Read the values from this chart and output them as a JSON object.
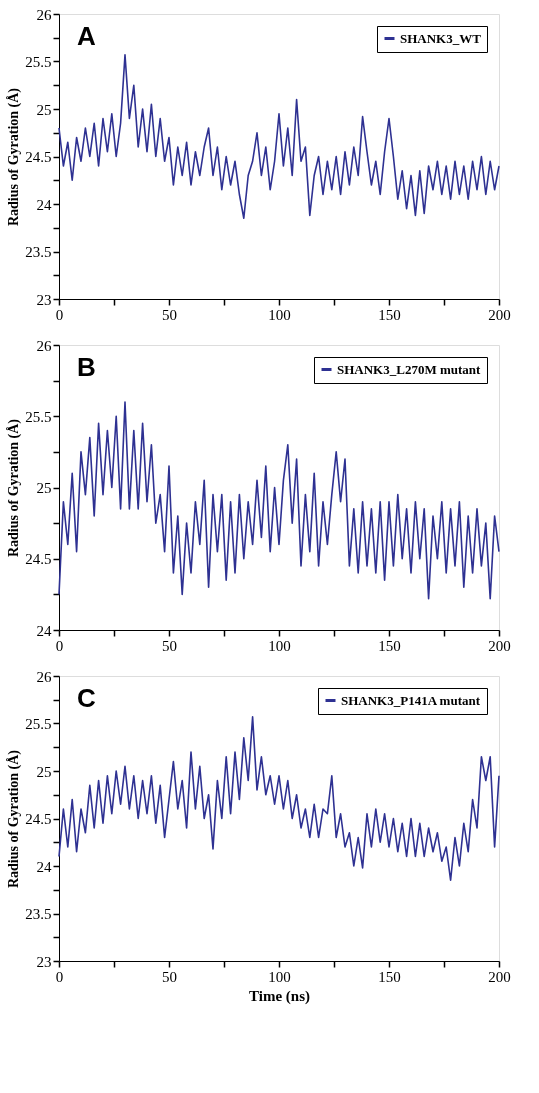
{
  "chart_data": [
    {
      "type": "line",
      "ylabel": "Radius of Gyration (Å)",
      "annotations": [
        "A"
      ],
      "legend": "top right",
      "grid": false,
      "xlim": [
        0,
        200
      ],
      "ylim": [
        23,
        26
      ],
      "xticks": [
        0,
        {
          "value": 25,
          "label": null
        },
        50,
        {
          "value": 75,
          "label": null
        },
        100,
        {
          "value": 125,
          "label": null
        },
        150,
        {
          "value": 175,
          "label": null
        },
        200
      ],
      "yticks": [
        23,
        {
          "value": 23.25,
          "label": null
        },
        23.5,
        {
          "value": 23.75,
          "label": null
        },
        24,
        {
          "value": 24.25,
          "label": null
        },
        24.5,
        {
          "value": 24.75,
          "label": null
        },
        25,
        {
          "value": 25.25,
          "label": null
        },
        25.5,
        {
          "value": 25.75,
          "label": null
        },
        26
      ],
      "x": [
        0,
        2,
        4,
        6,
        8,
        10,
        12,
        14,
        16,
        18,
        20,
        22,
        24,
        26,
        28,
        30,
        32,
        34,
        36,
        38,
        40,
        42,
        44,
        46,
        48,
        50,
        52,
        54,
        56,
        58,
        60,
        62,
        64,
        66,
        68,
        70,
        72,
        74,
        76,
        78,
        80,
        82,
        84,
        86,
        88,
        90,
        92,
        94,
        96,
        98,
        100,
        102,
        104,
        106,
        108,
        110,
        112,
        114,
        116,
        118,
        120,
        122,
        124,
        126,
        128,
        130,
        132,
        134,
        136,
        138,
        140,
        142,
        144,
        146,
        148,
        150,
        152,
        154,
        156,
        158,
        160,
        162,
        164,
        166,
        168,
        170,
        172,
        174,
        176,
        178,
        180,
        182,
        184,
        186,
        188,
        190,
        192,
        194,
        196,
        198,
        200
      ],
      "series": [
        {
          "name": "SHANK3_WT",
          "color": "#2e3192",
          "values": [
            24.8,
            24.4,
            24.65,
            24.25,
            24.7,
            24.45,
            24.8,
            24.5,
            24.85,
            24.4,
            24.9,
            24.55,
            24.95,
            24.5,
            24.85,
            25.57,
            24.9,
            25.25,
            24.6,
            25.0,
            24.55,
            25.05,
            24.5,
            24.9,
            24.45,
            24.7,
            24.2,
            24.6,
            24.3,
            24.65,
            24.2,
            24.55,
            24.3,
            24.6,
            24.8,
            24.3,
            24.6,
            24.15,
            24.5,
            24.2,
            24.45,
            24.1,
            23.85,
            24.3,
            24.45,
            24.75,
            24.3,
            24.6,
            24.15,
            24.45,
            24.95,
            24.4,
            24.8,
            24.3,
            25.1,
            24.45,
            24.6,
            23.88,
            24.3,
            24.5,
            24.1,
            24.45,
            24.15,
            24.5,
            24.1,
            24.55,
            24.2,
            24.6,
            24.3,
            24.92,
            24.55,
            24.2,
            24.45,
            24.1,
            24.55,
            24.9,
            24.5,
            24.05,
            24.35,
            23.95,
            24.3,
            23.88,
            24.35,
            23.9,
            24.4,
            24.15,
            24.45,
            24.1,
            24.4,
            24.05,
            24.45,
            24.1,
            24.4,
            24.05,
            24.45,
            24.15,
            24.5,
            24.1,
            24.45,
            24.15,
            24.4
          ]
        }
      ]
    },
    {
      "type": "line",
      "ylabel": "Radius of Gyration (Å)",
      "annotations": [
        "B"
      ],
      "legend": "top right",
      "grid": false,
      "xlim": [
        0,
        200
      ],
      "ylim": [
        24,
        26
      ],
      "xticks": [
        0,
        {
          "value": 25,
          "label": null
        },
        50,
        {
          "value": 75,
          "label": null
        },
        100,
        {
          "value": 125,
          "label": null
        },
        150,
        {
          "value": 175,
          "label": null
        },
        200
      ],
      "yticks": [
        24,
        {
          "value": 24.25,
          "label": null
        },
        24.5,
        {
          "value": 24.75,
          "label": null
        },
        25,
        {
          "value": 25.25,
          "label": null
        },
        25.5,
        {
          "value": 25.75,
          "label": null
        },
        26
      ],
      "x": [
        0,
        2,
        4,
        6,
        8,
        10,
        12,
        14,
        16,
        18,
        20,
        22,
        24,
        26,
        28,
        30,
        32,
        34,
        36,
        38,
        40,
        42,
        44,
        46,
        48,
        50,
        52,
        54,
        56,
        58,
        60,
        62,
        64,
        66,
        68,
        70,
        72,
        74,
        76,
        78,
        80,
        82,
        84,
        86,
        88,
        90,
        92,
        94,
        96,
        98,
        100,
        102,
        104,
        106,
        108,
        110,
        112,
        114,
        116,
        118,
        120,
        122,
        124,
        126,
        128,
        130,
        132,
        134,
        136,
        138,
        140,
        142,
        144,
        146,
        148,
        150,
        152,
        154,
        156,
        158,
        160,
        162,
        164,
        166,
        168,
        170,
        172,
        174,
        176,
        178,
        180,
        182,
        184,
        186,
        188,
        190,
        192,
        194,
        196,
        198,
        200
      ],
      "series": [
        {
          "name": "SHANK3_L270M mutant",
          "color": "#2e3192",
          "values": [
            24.25,
            24.9,
            24.6,
            25.1,
            24.55,
            25.25,
            24.95,
            25.35,
            24.8,
            25.45,
            24.95,
            25.4,
            25.0,
            25.5,
            24.85,
            25.6,
            24.85,
            25.4,
            24.85,
            25.45,
            24.9,
            25.3,
            24.75,
            24.95,
            24.55,
            25.15,
            24.4,
            24.8,
            24.25,
            24.75,
            24.4,
            24.9,
            24.6,
            25.05,
            24.3,
            24.95,
            24.55,
            24.95,
            24.35,
            24.9,
            24.4,
            24.95,
            24.5,
            24.9,
            24.6,
            25.05,
            24.65,
            25.15,
            24.55,
            25.0,
            24.6,
            25.05,
            25.3,
            24.75,
            25.2,
            24.45,
            24.95,
            24.55,
            25.1,
            24.45,
            24.9,
            24.6,
            24.95,
            25.25,
            24.9,
            25.2,
            24.45,
            24.85,
            24.4,
            24.9,
            24.45,
            24.85,
            24.4,
            24.9,
            24.35,
            24.9,
            24.45,
            24.95,
            24.5,
            24.85,
            24.4,
            24.9,
            24.5,
            24.85,
            24.22,
            24.8,
            24.5,
            24.9,
            24.4,
            24.85,
            24.45,
            24.9,
            24.3,
            24.8,
            24.4,
            24.85,
            24.45,
            24.75,
            24.22,
            24.8,
            24.55
          ]
        }
      ]
    },
    {
      "type": "line",
      "xlabel": "Time (ns)",
      "ylabel": "Radius of Gyration (Å)",
      "annotations": [
        "C"
      ],
      "legend": "top right",
      "grid": false,
      "xlim": [
        0,
        200
      ],
      "ylim": [
        23,
        26
      ],
      "xticks": [
        0,
        {
          "value": 25,
          "label": null
        },
        50,
        {
          "value": 75,
          "label": null
        },
        100,
        {
          "value": 125,
          "label": null
        },
        150,
        {
          "value": 175,
          "label": null
        },
        200
      ],
      "yticks": [
        23,
        {
          "value": 23.25,
          "label": null
        },
        23.5,
        {
          "value": 23.75,
          "label": null
        },
        24,
        {
          "value": 24.25,
          "label": null
        },
        24.5,
        {
          "value": 24.75,
          "label": null
        },
        25,
        {
          "value": 25.25,
          "label": null
        },
        25.5,
        {
          "value": 25.75,
          "label": null
        },
        26
      ],
      "x": [
        0,
        2,
        4,
        6,
        8,
        10,
        12,
        14,
        16,
        18,
        20,
        22,
        24,
        26,
        28,
        30,
        32,
        34,
        36,
        38,
        40,
        42,
        44,
        46,
        48,
        50,
        52,
        54,
        56,
        58,
        60,
        62,
        64,
        66,
        68,
        70,
        72,
        74,
        76,
        78,
        80,
        82,
        84,
        86,
        88,
        90,
        92,
        94,
        96,
        98,
        100,
        102,
        104,
        106,
        108,
        110,
        112,
        114,
        116,
        118,
        120,
        122,
        124,
        126,
        128,
        130,
        132,
        134,
        136,
        138,
        140,
        142,
        144,
        146,
        148,
        150,
        152,
        154,
        156,
        158,
        160,
        162,
        164,
        166,
        168,
        170,
        172,
        174,
        176,
        178,
        180,
        182,
        184,
        186,
        188,
        190,
        192,
        194,
        196,
        198,
        200
      ],
      "series": [
        {
          "name": "SHANK3_P141A mutant",
          "color": "#2e3192",
          "values": [
            24.1,
            24.6,
            24.2,
            24.7,
            24.15,
            24.6,
            24.35,
            24.85,
            24.4,
            24.9,
            24.45,
            24.95,
            24.55,
            25.0,
            24.65,
            25.05,
            24.6,
            24.95,
            24.5,
            24.9,
            24.55,
            24.95,
            24.45,
            24.85,
            24.3,
            24.7,
            25.1,
            24.6,
            24.9,
            24.4,
            25.2,
            24.6,
            25.05,
            24.5,
            24.75,
            24.18,
            24.9,
            24.5,
            25.15,
            24.55,
            25.2,
            24.7,
            25.35,
            24.9,
            25.57,
            24.8,
            25.15,
            24.75,
            24.95,
            24.65,
            24.95,
            24.6,
            24.9,
            24.5,
            24.75,
            24.4,
            24.6,
            24.3,
            24.65,
            24.3,
            24.6,
            24.55,
            24.95,
            24.3,
            24.55,
            24.2,
            24.35,
            24.0,
            24.3,
            23.98,
            24.55,
            24.2,
            24.6,
            24.25,
            24.55,
            24.2,
            24.5,
            24.15,
            24.45,
            24.1,
            24.5,
            24.1,
            24.45,
            24.1,
            24.4,
            24.15,
            24.35,
            24.05,
            24.2,
            23.85,
            24.3,
            24.0,
            24.45,
            24.15,
            24.7,
            24.4,
            25.15,
            24.9,
            25.15,
            24.2,
            24.95
          ]
        }
      ]
    }
  ]
}
